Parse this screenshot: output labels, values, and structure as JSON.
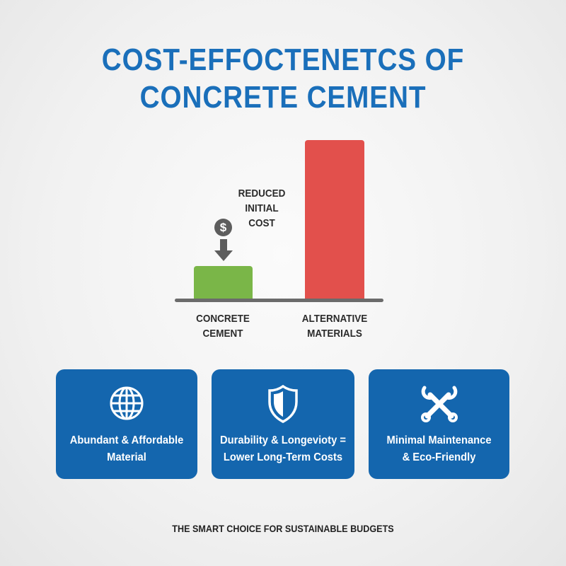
{
  "title": {
    "line1": "COST-EFFOCTENETCS OF",
    "line2": "CONCRETE CEMENT"
  },
  "chart": {
    "categories": [
      {
        "line1": "CONCRETE",
        "line2": "CEMENT",
        "color": "#7ab648"
      },
      {
        "line1": "ALTERNATIVE",
        "line2": "MATERIALS",
        "color": "#e2504c"
      }
    ],
    "annotation": {
      "line1": "REDUCED",
      "line2": "INITIAL",
      "line3": "COST",
      "icon": "dollar-coin-icon",
      "symbol": "$"
    }
  },
  "cards": [
    {
      "icon": "globe-icon",
      "line1": "Abundant & Affordable",
      "line2": "Material"
    },
    {
      "icon": "shield-icon",
      "line1": "Durability & Longevioty =",
      "line2": "Lower Long-Term Costs"
    },
    {
      "icon": "wrench-tools-icon",
      "line1": "Minimal Maintenance",
      "line2": "& Eco-Friendly"
    }
  ],
  "footer": "THE SMART CHOICE FOR SUSTAINABLE BUDGETS",
  "colors": {
    "accent": "#1a6fba",
    "card": "#1466ae",
    "green": "#7ab648",
    "red": "#e2504c"
  }
}
